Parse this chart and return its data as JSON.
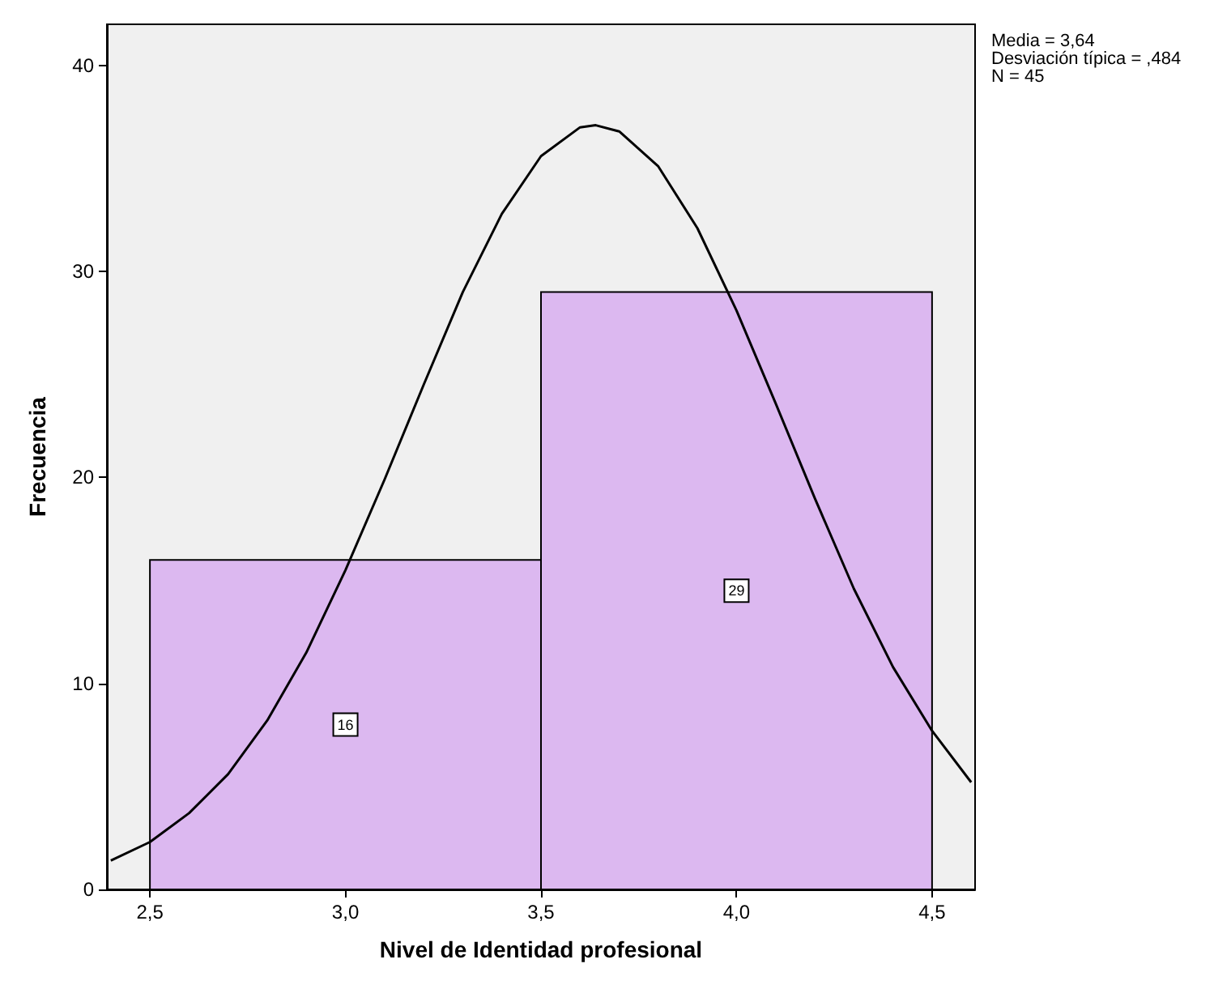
{
  "chart_data": {
    "type": "histogram",
    "xlabel": "Nivel de Identidad profesional",
    "ylabel": "Frecuencia",
    "bins": [
      2.5,
      3.5,
      4.5
    ],
    "values": [
      16,
      29
    ],
    "color": "#dcb8f0",
    "value_labels": [
      "16",
      "29"
    ],
    "series": [
      {
        "type": "line",
        "color": "#000000",
        "x": [
          2.4,
          2.5,
          2.6,
          2.7,
          2.8,
          2.9,
          3.0,
          3.1,
          3.2,
          3.3,
          3.4,
          3.5,
          3.6,
          3.64,
          3.7,
          3.8,
          3.9,
          4.0,
          4.1,
          4.2,
          4.3,
          4.4,
          4.5,
          4.6
        ],
        "values": [
          1.4,
          2.3,
          3.7,
          5.6,
          8.2,
          11.5,
          15.5,
          19.9,
          24.5,
          29.0,
          32.8,
          35.6,
          37.0,
          37.1,
          36.8,
          35.1,
          32.1,
          28.1,
          23.6,
          19.0,
          14.6,
          10.8,
          7.7,
          5.2
        ]
      }
    ],
    "xlim": [
      2.39,
      4.61
    ],
    "ylim": [
      0,
      42
    ],
    "xticks": [
      {
        "value": 2.5,
        "label": "2,5"
      },
      {
        "value": 3.0,
        "label": "3,0"
      },
      {
        "value": 3.5,
        "label": "3,5"
      },
      {
        "value": 4.0,
        "label": "4,0"
      },
      {
        "value": 4.5,
        "label": "4,5"
      }
    ],
    "yticks": [
      0,
      10,
      20,
      30,
      40
    ],
    "grid": false,
    "annotations": [
      "Media = 3,64",
      "Desviación típica = ,484",
      "N = 45"
    ]
  }
}
